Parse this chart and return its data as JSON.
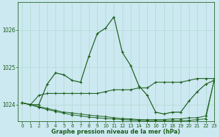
{
  "title": "Graphe pression niveau de la mer (hPa)",
  "background_color": "#cce8f0",
  "grid_color": "#b0d8d0",
  "line_color": "#1a5e1a",
  "xlim": [
    -0.5,
    23
  ],
  "ylim": [
    1023.55,
    1026.75
  ],
  "yticks": [
    1024,
    1025,
    1026
  ],
  "xticks": [
    0,
    1,
    2,
    3,
    4,
    5,
    6,
    7,
    8,
    9,
    10,
    11,
    12,
    13,
    14,
    15,
    16,
    17,
    18,
    19,
    20,
    21,
    22,
    23
  ],
  "series1_x": [
    0,
    1,
    2,
    3,
    4,
    5,
    6,
    7,
    8,
    9,
    10,
    11,
    12,
    13,
    14,
    15,
    16,
    17,
    18,
    19,
    20,
    21,
    22,
    23
  ],
  "series1_y": [
    1024.05,
    1024.0,
    1024.0,
    1024.55,
    1024.85,
    1024.8,
    1024.65,
    1024.6,
    1025.3,
    1025.9,
    1026.05,
    1026.35,
    1025.4,
    1025.05,
    1024.5,
    1024.25,
    1023.8,
    1023.75,
    1023.8,
    1023.8,
    1024.1,
    1024.35,
    1024.55,
    1024.65
  ],
  "series2_x": [
    0,
    1,
    2,
    3,
    4,
    5,
    6,
    7,
    8,
    9,
    10,
    11,
    12,
    13,
    14,
    15,
    16,
    17,
    18,
    19,
    20,
    21,
    22,
    23
  ],
  "series2_y": [
    1024.05,
    1024.0,
    1024.25,
    1024.3,
    1024.3,
    1024.3,
    1024.3,
    1024.3,
    1024.3,
    1024.3,
    1024.35,
    1024.4,
    1024.4,
    1024.4,
    1024.45,
    1024.45,
    1024.6,
    1024.6,
    1024.6,
    1024.6,
    1024.65,
    1024.7,
    1024.7,
    1024.7
  ],
  "series3_x": [
    0,
    1,
    2,
    3,
    4,
    5,
    6,
    7,
    8,
    9,
    10,
    11,
    12,
    13,
    14,
    15,
    16,
    17,
    18,
    19,
    20,
    21,
    22,
    23
  ],
  "series3_y": [
    1024.05,
    1024.0,
    1023.95,
    1023.9,
    1023.85,
    1023.8,
    1023.78,
    1023.75,
    1023.72,
    1023.7,
    1023.68,
    1023.65,
    1023.63,
    1023.62,
    1023.6,
    1023.6,
    1023.6,
    1023.6,
    1023.62,
    1023.62,
    1023.65,
    1023.65,
    1023.7,
    1024.65
  ],
  "series4_x": [
    0,
    1,
    2,
    3,
    4,
    5,
    6,
    7,
    8,
    9,
    10,
    11,
    12,
    13,
    14,
    15,
    16,
    17,
    18,
    19,
    20,
    21,
    22,
    23
  ],
  "series4_y": [
    1024.05,
    1024.0,
    1023.93,
    1023.87,
    1023.82,
    1023.77,
    1023.73,
    1023.7,
    1023.67,
    1023.65,
    1023.63,
    1023.62,
    1023.6,
    1023.59,
    1023.58,
    1023.57,
    1023.57,
    1023.57,
    1023.57,
    1023.57,
    1023.58,
    1023.6,
    1023.62,
    1024.65
  ]
}
